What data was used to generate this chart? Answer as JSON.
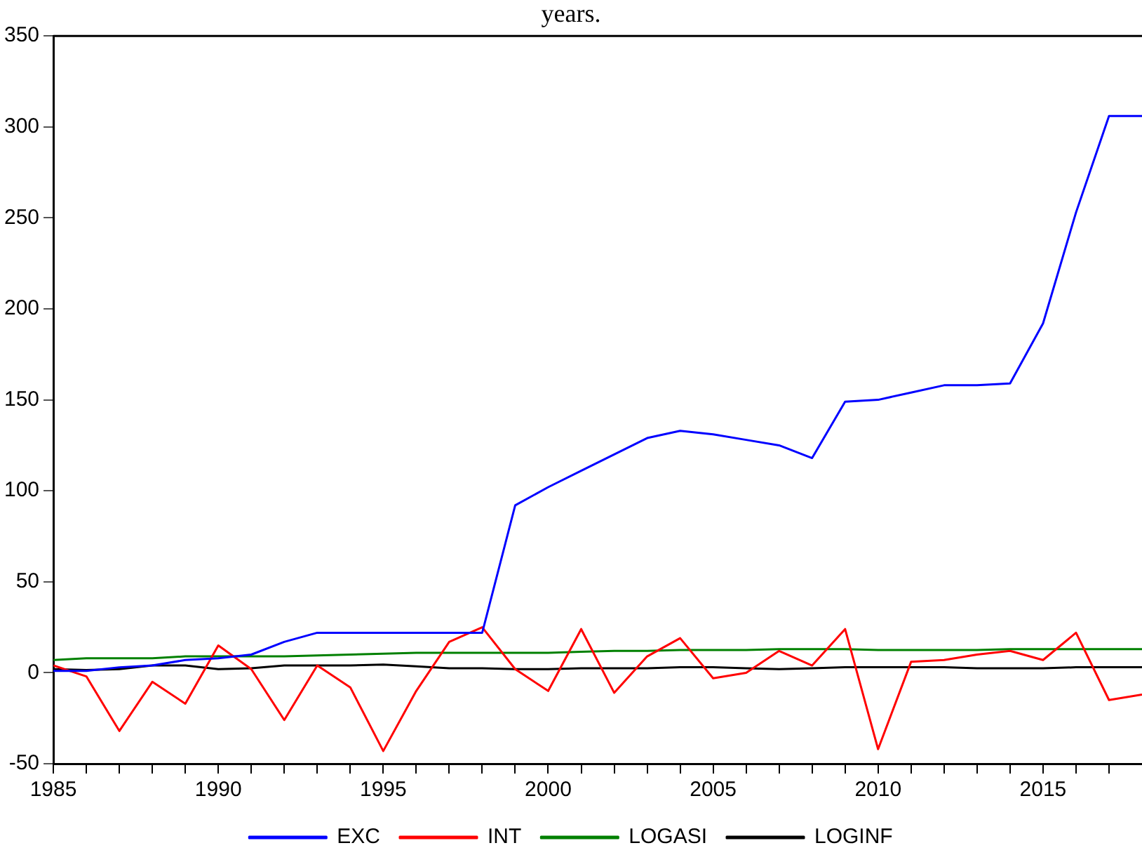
{
  "chart_data": {
    "type": "line",
    "title": "years.",
    "x": [
      1985,
      1986,
      1987,
      1988,
      1989,
      1990,
      1991,
      1992,
      1993,
      1994,
      1995,
      1996,
      1997,
      1998,
      1999,
      2000,
      2001,
      2002,
      2003,
      2004,
      2005,
      2006,
      2007,
      2008,
      2009,
      2010,
      2011,
      2012,
      2013,
      2014,
      2015,
      2016,
      2017,
      2018
    ],
    "series": [
      {
        "name": "EXC",
        "color": "#0000ff",
        "values": [
          1,
          1,
          3,
          4,
          7,
          8,
          10,
          17,
          22,
          22,
          22,
          22,
          22,
          22,
          92,
          102,
          111,
          120,
          129,
          133,
          131,
          128,
          125,
          118,
          149,
          150,
          154,
          158,
          158,
          159,
          192,
          253,
          306,
          306
        ]
      },
      {
        "name": "INT",
        "color": "#ff0000",
        "values": [
          4,
          -2,
          -32,
          -5,
          -17,
          15,
          2,
          -26,
          4,
          -8,
          -43,
          -10,
          17,
          25,
          2,
          -10,
          24,
          -11,
          9,
          19,
          -3,
          0,
          12,
          4,
          24,
          -42,
          6,
          7,
          10,
          12,
          7,
          22,
          -15,
          -12
        ]
      },
      {
        "name": "LOGASI",
        "color": "#008000",
        "values": [
          7,
          8,
          8,
          8,
          9,
          9,
          9,
          9,
          9.5,
          10,
          10.5,
          11,
          11,
          11,
          11,
          11,
          11.5,
          12,
          12,
          12.5,
          12.5,
          12.5,
          13,
          13,
          13,
          12.5,
          12.5,
          12.5,
          12.5,
          13,
          13,
          13,
          13,
          13
        ]
      },
      {
        "name": "LOGINF",
        "color": "#000000",
        "values": [
          2,
          1.5,
          2,
          4,
          4,
          2,
          2.5,
          4,
          4,
          4,
          4.5,
          3.5,
          2.5,
          2.5,
          2,
          2,
          2.5,
          2.5,
          2.5,
          3,
          3,
          2.5,
          2,
          2.5,
          3,
          3,
          3,
          3,
          2.5,
          2.5,
          2.5,
          3,
          3,
          3
        ]
      }
    ],
    "xlim": [
      1985,
      2018
    ],
    "xticks": [
      1985,
      {
        "value": 1986,
        "label": null
      },
      {
        "value": 1987,
        "label": null
      },
      {
        "value": 1988,
        "label": null
      },
      {
        "value": 1989,
        "label": null
      },
      1990,
      {
        "value": 1991,
        "label": null
      },
      {
        "value": 1992,
        "label": null
      },
      {
        "value": 1993,
        "label": null
      },
      {
        "value": 1994,
        "label": null
      },
      1995,
      {
        "value": 1996,
        "label": null
      },
      {
        "value": 1997,
        "label": null
      },
      {
        "value": 1998,
        "label": null
      },
      {
        "value": 1999,
        "label": null
      },
      2000,
      {
        "value": 2001,
        "label": null
      },
      {
        "value": 2002,
        "label": null
      },
      {
        "value": 2003,
        "label": null
      },
      {
        "value": 2004,
        "label": null
      },
      2005,
      {
        "value": 2006,
        "label": null
      },
      {
        "value": 2007,
        "label": null
      },
      {
        "value": 2008,
        "label": null
      },
      {
        "value": 2009,
        "label": null
      },
      2010,
      {
        "value": 2011,
        "label": null
      },
      {
        "value": 2012,
        "label": null
      },
      {
        "value": 2013,
        "label": null
      },
      {
        "value": 2014,
        "label": null
      },
      2015,
      {
        "value": 2016,
        "label": null
      },
      {
        "value": 2017,
        "label": null
      }
    ],
    "ylim": [
      -50,
      350
    ],
    "yticks": [
      -50,
      0,
      50,
      100,
      150,
      200,
      250,
      300,
      350
    ],
    "legend": "bottom",
    "marker": "none",
    "line_style": "solid"
  }
}
